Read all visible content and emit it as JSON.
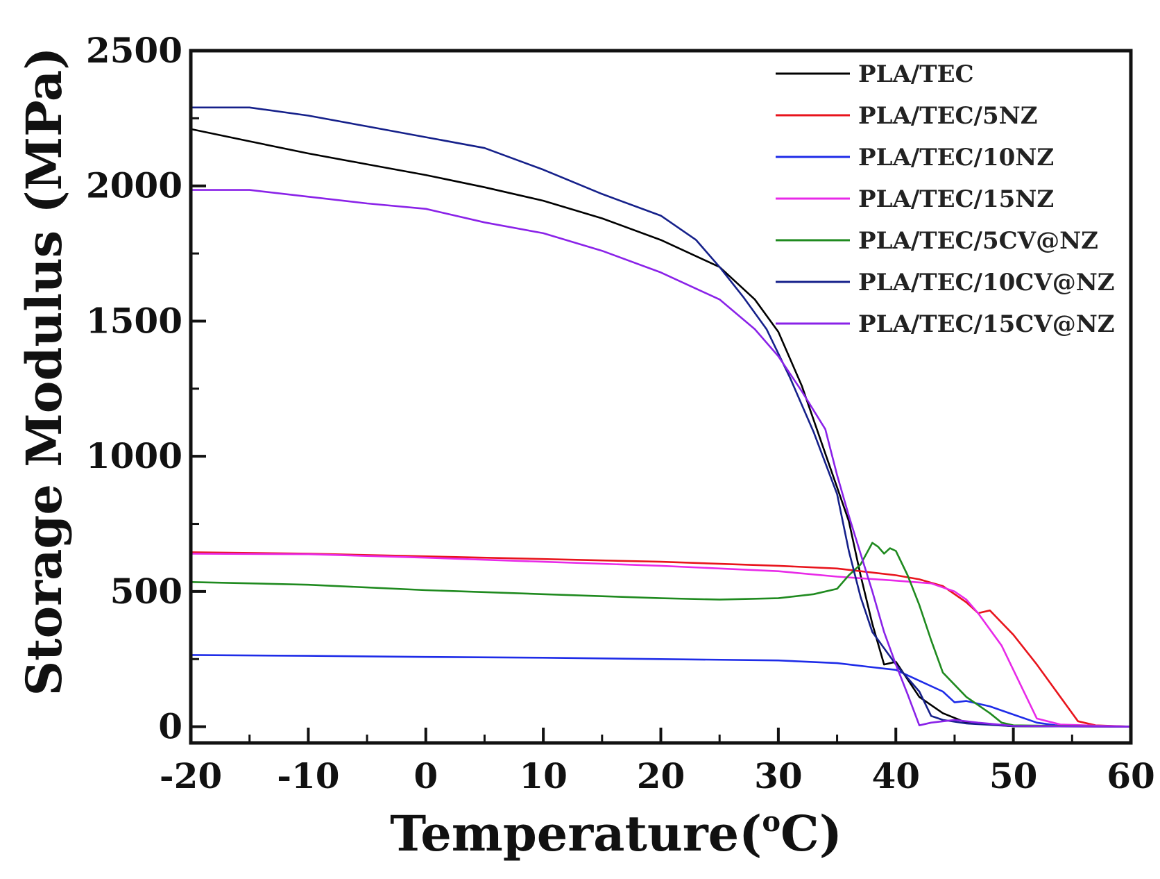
{
  "chart_data": {
    "type": "line",
    "xlabel": "Temperature(",
    "xlabel_sup": "o",
    "xlabel_end": "C)",
    "ylabel": "Storage Modulus (MPa)",
    "xlim": [
      -20,
      60
    ],
    "ylim": [
      -60,
      2500
    ],
    "xticks": [
      -20,
      -10,
      0,
      10,
      20,
      30,
      40,
      50,
      60
    ],
    "yticks": [
      0,
      500,
      1000,
      1500,
      2000,
      2500
    ],
    "legend_position": "top-right",
    "grid": false,
    "series": [
      {
        "name": "PLA/TEC",
        "color": "#000000",
        "points": [
          [
            -20,
            2210
          ],
          [
            -15,
            2165
          ],
          [
            -10,
            2120
          ],
          [
            -5,
            2080
          ],
          [
            0,
            2040
          ],
          [
            5,
            1995
          ],
          [
            10,
            1945
          ],
          [
            15,
            1880
          ],
          [
            20,
            1800
          ],
          [
            25,
            1700
          ],
          [
            28,
            1580
          ],
          [
            30,
            1460
          ],
          [
            32,
            1260
          ],
          [
            34,
            1010
          ],
          [
            36,
            760
          ],
          [
            37,
            560
          ],
          [
            38,
            380
          ],
          [
            39,
            230
          ],
          [
            40,
            240
          ],
          [
            42,
            110
          ],
          [
            44,
            50
          ],
          [
            46,
            15
          ],
          [
            50,
            2
          ],
          [
            60,
            0
          ]
        ]
      },
      {
        "name": "PLA/TEC/5NZ",
        "color": "#e8141c",
        "points": [
          [
            -20,
            645
          ],
          [
            -10,
            640
          ],
          [
            0,
            630
          ],
          [
            10,
            620
          ],
          [
            20,
            610
          ],
          [
            30,
            595
          ],
          [
            35,
            585
          ],
          [
            40,
            560
          ],
          [
            42,
            545
          ],
          [
            44,
            520
          ],
          [
            46,
            460
          ],
          [
            47,
            420
          ],
          [
            48,
            430
          ],
          [
            50,
            340
          ],
          [
            52,
            230
          ],
          [
            54,
            110
          ],
          [
            55.5,
            20
          ],
          [
            57,
            5
          ],
          [
            60,
            0
          ]
        ]
      },
      {
        "name": "PLA/TEC/10NZ",
        "color": "#1e2ce8",
        "points": [
          [
            -20,
            265
          ],
          [
            -10,
            262
          ],
          [
            0,
            258
          ],
          [
            10,
            255
          ],
          [
            20,
            250
          ],
          [
            30,
            245
          ],
          [
            35,
            235
          ],
          [
            38,
            220
          ],
          [
            40,
            210
          ],
          [
            42,
            170
          ],
          [
            44,
            130
          ],
          [
            45,
            90
          ],
          [
            46,
            95
          ],
          [
            48,
            75
          ],
          [
            50,
            45
          ],
          [
            52,
            15
          ],
          [
            54,
            3
          ],
          [
            60,
            0
          ]
        ]
      },
      {
        "name": "PLA/TEC/15NZ",
        "color": "#e82ae8",
        "points": [
          [
            -20,
            640
          ],
          [
            -10,
            638
          ],
          [
            0,
            625
          ],
          [
            10,
            610
          ],
          [
            20,
            595
          ],
          [
            30,
            575
          ],
          [
            35,
            555
          ],
          [
            40,
            540
          ],
          [
            43,
            530
          ],
          [
            45,
            500
          ],
          [
            46,
            470
          ],
          [
            47,
            420
          ],
          [
            49,
            300
          ],
          [
            51,
            120
          ],
          [
            52,
            30
          ],
          [
            54,
            8
          ],
          [
            60,
            0
          ]
        ]
      },
      {
        "name": "PLA/TEC/5CV@NZ",
        "color": "#1f8a1f",
        "points": [
          [
            -20,
            535
          ],
          [
            -15,
            530
          ],
          [
            -10,
            525
          ],
          [
            -5,
            515
          ],
          [
            0,
            505
          ],
          [
            10,
            490
          ],
          [
            20,
            475
          ],
          [
            25,
            470
          ],
          [
            30,
            475
          ],
          [
            33,
            490
          ],
          [
            35,
            510
          ],
          [
            36,
            560
          ],
          [
            37,
            600
          ],
          [
            38,
            680
          ],
          [
            38.5,
            665
          ],
          [
            39,
            640
          ],
          [
            39.5,
            660
          ],
          [
            40,
            650
          ],
          [
            41,
            560
          ],
          [
            42,
            450
          ],
          [
            43,
            320
          ],
          [
            44,
            200
          ],
          [
            46,
            110
          ],
          [
            48,
            50
          ],
          [
            49,
            15
          ],
          [
            50,
            5
          ],
          [
            60,
            0
          ]
        ]
      },
      {
        "name": "PLA/TEC/10CV@NZ",
        "color": "#15208a",
        "points": [
          [
            -20,
            2290
          ],
          [
            -15,
            2290
          ],
          [
            -10,
            2260
          ],
          [
            -5,
            2220
          ],
          [
            0,
            2180
          ],
          [
            5,
            2140
          ],
          [
            10,
            2060
          ],
          [
            15,
            1970
          ],
          [
            20,
            1890
          ],
          [
            23,
            1800
          ],
          [
            25,
            1700
          ],
          [
            27,
            1590
          ],
          [
            29,
            1470
          ],
          [
            31,
            1290
          ],
          [
            33,
            1090
          ],
          [
            35,
            860
          ],
          [
            36,
            650
          ],
          [
            37,
            480
          ],
          [
            38,
            350
          ],
          [
            40,
            230
          ],
          [
            41,
            180
          ],
          [
            42,
            130
          ],
          [
            43,
            40
          ],
          [
            44,
            25
          ],
          [
            46,
            12
          ],
          [
            50,
            2
          ],
          [
            60,
            0
          ]
        ]
      },
      {
        "name": "PLA/TEC/15CV@NZ",
        "color": "#8a22e8",
        "points": [
          [
            -20,
            1985
          ],
          [
            -15,
            1985
          ],
          [
            -10,
            1960
          ],
          [
            -5,
            1935
          ],
          [
            0,
            1915
          ],
          [
            5,
            1865
          ],
          [
            10,
            1825
          ],
          [
            15,
            1760
          ],
          [
            20,
            1680
          ],
          [
            25,
            1580
          ],
          [
            28,
            1470
          ],
          [
            30,
            1370
          ],
          [
            32,
            1240
          ],
          [
            34,
            1100
          ],
          [
            35,
            930
          ],
          [
            36,
            780
          ],
          [
            37,
            640
          ],
          [
            38,
            500
          ],
          [
            39,
            350
          ],
          [
            40,
            230
          ],
          [
            41,
            120
          ],
          [
            42,
            5
          ],
          [
            43,
            15
          ],
          [
            45,
            25
          ],
          [
            47,
            15
          ],
          [
            50,
            3
          ],
          [
            60,
            0
          ]
        ]
      }
    ]
  }
}
